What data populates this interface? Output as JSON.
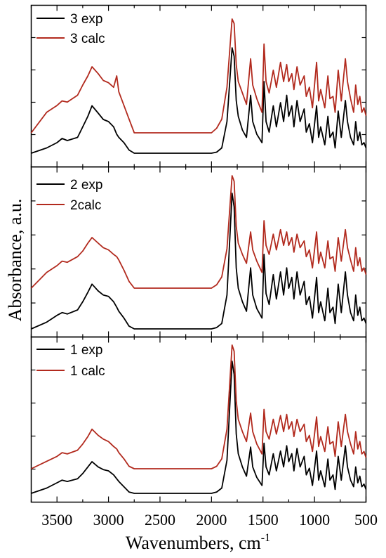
{
  "chart_data": {
    "type": "line",
    "xlabel": "Wavenumbers, cm",
    "xlabel_sup": "-1",
    "ylabel": "Absorbance, a.u.",
    "xlim": [
      3750,
      500
    ],
    "x_ticks": [
      3500,
      3000,
      2500,
      2000,
      1500,
      1000,
      500
    ],
    "x_tick_labels": [
      "3500",
      "3000",
      "2500",
      "2000",
      "1500",
      "1000",
      "500"
    ],
    "y_ticks_hidden": true,
    "legend_position": "top-left",
    "colors": {
      "exp": "#000000",
      "calc": "#b22a1e"
    },
    "panels": [
      {
        "legend": [
          "3 exp",
          "3 calc"
        ],
        "series": [
          {
            "name": "3 exp",
            "color": "#000000",
            "x": [
              3750,
              3600,
              3500,
              3450,
              3400,
              3300,
              3250,
              3200,
              3160,
              3100,
              3050,
              3000,
              2950,
              2920,
              2900,
              2850,
              2800,
              2750,
              2700,
              2000,
              1950,
              1900,
              1850,
              1800,
              1780,
              1760,
              1740,
              1700,
              1660,
              1620,
              1600,
              1560,
              1510,
              1490,
              1470,
              1440,
              1400,
              1370,
              1330,
              1300,
              1270,
              1250,
              1220,
              1200,
              1170,
              1140,
              1100,
              1080,
              1050,
              1020,
              980,
              960,
              940,
              900,
              870,
              850,
              820,
              800,
              770,
              740,
              700,
              680,
              650,
              620,
              600,
              580,
              560,
              540,
              520,
              500
            ],
            "y": [
              0,
              0.05,
              0.1,
              0.14,
              0.12,
              0.15,
              0.25,
              0.35,
              0.45,
              0.38,
              0.32,
              0.3,
              0.25,
              0.18,
              0.15,
              0.1,
              0.03,
              0,
              0,
              0,
              0.01,
              0.05,
              0.3,
              1.0,
              0.92,
              0.5,
              0.35,
              0.22,
              0.15,
              0.55,
              0.3,
              0.18,
              0.1,
              0.68,
              0.3,
              0.2,
              0.45,
              0.25,
              0.48,
              0.3,
              0.55,
              0.35,
              0.45,
              0.25,
              0.5,
              0.3,
              0.42,
              0.2,
              0.28,
              0.1,
              0.45,
              0.15,
              0.25,
              0.08,
              0.35,
              0.15,
              0.2,
              0.05,
              0.4,
              0.15,
              0.5,
              0.3,
              0.15,
              0.08,
              0.3,
              0.12,
              0.2,
              0.08,
              0.1,
              0.05
            ]
          },
          {
            "name": "3 calc",
            "color": "#b22a1e",
            "x": [
              3750,
              3600,
              3500,
              3450,
              3400,
              3300,
              3250,
              3200,
              3160,
              3100,
              3050,
              3000,
              2950,
              2920,
              2900,
              2850,
              2800,
              2750,
              2700,
              2000,
              1950,
              1900,
              1850,
              1800,
              1780,
              1760,
              1740,
              1700,
              1660,
              1620,
              1600,
              1560,
              1510,
              1490,
              1470,
              1440,
              1400,
              1370,
              1330,
              1300,
              1270,
              1250,
              1220,
              1200,
              1170,
              1140,
              1100,
              1080,
              1050,
              1020,
              980,
              960,
              940,
              900,
              870,
              850,
              820,
              800,
              770,
              740,
              700,
              680,
              650,
              620,
              600,
              580,
              560,
              540,
              520,
              500
            ],
            "y": [
              0,
              0.18,
              0.24,
              0.28,
              0.27,
              0.33,
              0.42,
              0.5,
              0.58,
              0.52,
              0.46,
              0.44,
              0.4,
              0.5,
              0.36,
              0.24,
              0.12,
              0,
              0,
              0,
              0.04,
              0.12,
              0.4,
              1.0,
              0.96,
              0.6,
              0.45,
              0.35,
              0.25,
              0.65,
              0.42,
              0.3,
              0.18,
              0.78,
              0.45,
              0.35,
              0.55,
              0.4,
              0.62,
              0.45,
              0.6,
              0.45,
              0.52,
              0.38,
              0.58,
              0.42,
              0.5,
              0.32,
              0.4,
              0.22,
              0.62,
              0.28,
              0.38,
              0.22,
              0.5,
              0.3,
              0.32,
              0.18,
              0.55,
              0.28,
              0.65,
              0.45,
              0.3,
              0.18,
              0.42,
              0.25,
              0.32,
              0.18,
              0.22,
              0.15
            ]
          }
        ]
      },
      {
        "legend": [
          "2 exp",
          "2calc"
        ],
        "series": [
          {
            "name": "2 exp",
            "color": "#000000",
            "x": [
              3750,
              3600,
              3500,
              3450,
              3400,
              3300,
              3250,
              3200,
              3160,
              3100,
              3050,
              3000,
              2950,
              2920,
              2900,
              2850,
              2800,
              2750,
              2700,
              2000,
              1950,
              1900,
              1850,
              1800,
              1780,
              1760,
              1740,
              1700,
              1660,
              1620,
              1600,
              1560,
              1510,
              1490,
              1470,
              1440,
              1400,
              1370,
              1330,
              1300,
              1270,
              1250,
              1220,
              1200,
              1170,
              1140,
              1100,
              1080,
              1050,
              1020,
              980,
              960,
              940,
              900,
              870,
              850,
              820,
              800,
              770,
              740,
              700,
              680,
              650,
              620,
              600,
              580,
              560,
              540,
              520,
              500
            ],
            "y": [
              0,
              0.05,
              0.1,
              0.12,
              0.11,
              0.14,
              0.2,
              0.27,
              0.33,
              0.28,
              0.25,
              0.24,
              0.2,
              0.16,
              0.13,
              0.08,
              0.02,
              0,
              0,
              0,
              0.01,
              0.04,
              0.25,
              1.0,
              0.9,
              0.45,
              0.3,
              0.2,
              0.13,
              0.45,
              0.25,
              0.15,
              0.08,
              0.55,
              0.26,
              0.18,
              0.4,
              0.22,
              0.42,
              0.25,
              0.45,
              0.3,
              0.38,
              0.22,
              0.42,
              0.25,
              0.35,
              0.18,
              0.24,
              0.08,
              0.38,
              0.12,
              0.2,
              0.06,
              0.3,
              0.12,
              0.16,
              0.04,
              0.33,
              0.12,
              0.42,
              0.25,
              0.12,
              0.06,
              0.25,
              0.1,
              0.16,
              0.06,
              0.08,
              0.04
            ]
          },
          {
            "name": "2calc",
            "color": "#b22a1e",
            "x": [
              3750,
              3600,
              3500,
              3450,
              3400,
              3300,
              3250,
              3200,
              3160,
              3100,
              3050,
              3000,
              2950,
              2920,
              2900,
              2850,
              2800,
              2750,
              2700,
              2000,
              1950,
              1900,
              1850,
              1800,
              1780,
              1760,
              1740,
              1700,
              1660,
              1620,
              1600,
              1560,
              1510,
              1490,
              1470,
              1440,
              1400,
              1370,
              1330,
              1300,
              1270,
              1250,
              1220,
              1200,
              1170,
              1140,
              1100,
              1080,
              1050,
              1020,
              980,
              960,
              940,
              900,
              870,
              850,
              820,
              800,
              770,
              740,
              700,
              680,
              650,
              620,
              600,
              580,
              560,
              540,
              520,
              500
            ],
            "y": [
              0,
              0.14,
              0.2,
              0.24,
              0.23,
              0.28,
              0.33,
              0.4,
              0.45,
              0.4,
              0.36,
              0.34,
              0.3,
              0.28,
              0.25,
              0.16,
              0.06,
              0,
              0,
              0,
              0.03,
              0.1,
              0.35,
              1.0,
              0.95,
              0.55,
              0.4,
              0.3,
              0.22,
              0.5,
              0.34,
              0.24,
              0.14,
              0.6,
              0.38,
              0.3,
              0.48,
              0.34,
              0.52,
              0.38,
              0.5,
              0.38,
              0.45,
              0.32,
              0.48,
              0.36,
              0.42,
              0.28,
              0.34,
              0.18,
              0.5,
              0.22,
              0.32,
              0.18,
              0.42,
              0.26,
              0.28,
              0.15,
              0.45,
              0.24,
              0.52,
              0.36,
              0.25,
              0.15,
              0.36,
              0.2,
              0.27,
              0.15,
              0.18,
              0.12
            ]
          }
        ]
      },
      {
        "legend": [
          "1 exp",
          "1 calc"
        ],
        "series": [
          {
            "name": "1 exp",
            "color": "#000000",
            "x": [
              3750,
              3600,
              3500,
              3450,
              3400,
              3300,
              3250,
              3200,
              3160,
              3100,
              3050,
              3000,
              2950,
              2920,
              2900,
              2850,
              2800,
              2750,
              2700,
              2000,
              1950,
              1900,
              1850,
              1800,
              1780,
              1760,
              1740,
              1700,
              1660,
              1620,
              1600,
              1560,
              1510,
              1490,
              1470,
              1440,
              1400,
              1370,
              1330,
              1300,
              1270,
              1250,
              1220,
              1200,
              1170,
              1140,
              1100,
              1080,
              1050,
              1020,
              980,
              960,
              940,
              900,
              870,
              850,
              820,
              800,
              770,
              740,
              700,
              680,
              650,
              620,
              600,
              580,
              560,
              540,
              520,
              500
            ],
            "y": [
              0,
              0.04,
              0.08,
              0.1,
              0.09,
              0.11,
              0.15,
              0.2,
              0.24,
              0.2,
              0.18,
              0.17,
              0.14,
              0.11,
              0.09,
              0.05,
              0.01,
              0,
              0,
              0,
              0.01,
              0.04,
              0.25,
              1.0,
              0.9,
              0.45,
              0.3,
              0.2,
              0.13,
              0.35,
              0.2,
              0.12,
              0.06,
              0.38,
              0.2,
              0.14,
              0.3,
              0.17,
              0.32,
              0.2,
              0.36,
              0.24,
              0.3,
              0.17,
              0.34,
              0.2,
              0.28,
              0.14,
              0.19,
              0.06,
              0.32,
              0.1,
              0.17,
              0.05,
              0.26,
              0.1,
              0.14,
              0.03,
              0.28,
              0.1,
              0.36,
              0.2,
              0.1,
              0.05,
              0.2,
              0.08,
              0.13,
              0.05,
              0.07,
              0.03
            ]
          },
          {
            "name": "1 calc",
            "color": "#b22a1e",
            "x": [
              3750,
              3600,
              3500,
              3450,
              3400,
              3300,
              3250,
              3200,
              3160,
              3100,
              3050,
              3000,
              2950,
              2920,
              2900,
              2850,
              2800,
              2750,
              2700,
              2000,
              1950,
              1900,
              1850,
              1800,
              1780,
              1760,
              1740,
              1700,
              1660,
              1620,
              1600,
              1560,
              1510,
              1490,
              1470,
              1440,
              1400,
              1370,
              1330,
              1300,
              1270,
              1250,
              1220,
              1200,
              1170,
              1140,
              1100,
              1080,
              1050,
              1020,
              980,
              960,
              940,
              900,
              870,
              850,
              820,
              800,
              770,
              740,
              700,
              680,
              650,
              620,
              600,
              580,
              560,
              540,
              520,
              500
            ],
            "y": [
              0,
              0.06,
              0.1,
              0.13,
              0.12,
              0.15,
              0.2,
              0.26,
              0.32,
              0.27,
              0.24,
              0.22,
              0.18,
              0.16,
              0.13,
              0.08,
              0.02,
              0,
              0,
              0,
              0.02,
              0.08,
              0.32,
              1.0,
              0.95,
              0.55,
              0.4,
              0.3,
              0.22,
              0.45,
              0.3,
              0.2,
              0.12,
              0.48,
              0.3,
              0.24,
              0.4,
              0.28,
              0.43,
              0.3,
              0.44,
              0.32,
              0.38,
              0.26,
              0.4,
              0.3,
              0.36,
              0.22,
              0.27,
              0.14,
              0.42,
              0.18,
              0.26,
              0.14,
              0.34,
              0.2,
              0.22,
              0.1,
              0.38,
              0.18,
              0.44,
              0.3,
              0.2,
              0.12,
              0.3,
              0.16,
              0.22,
              0.12,
              0.14,
              0.09
            ]
          }
        ]
      }
    ]
  }
}
